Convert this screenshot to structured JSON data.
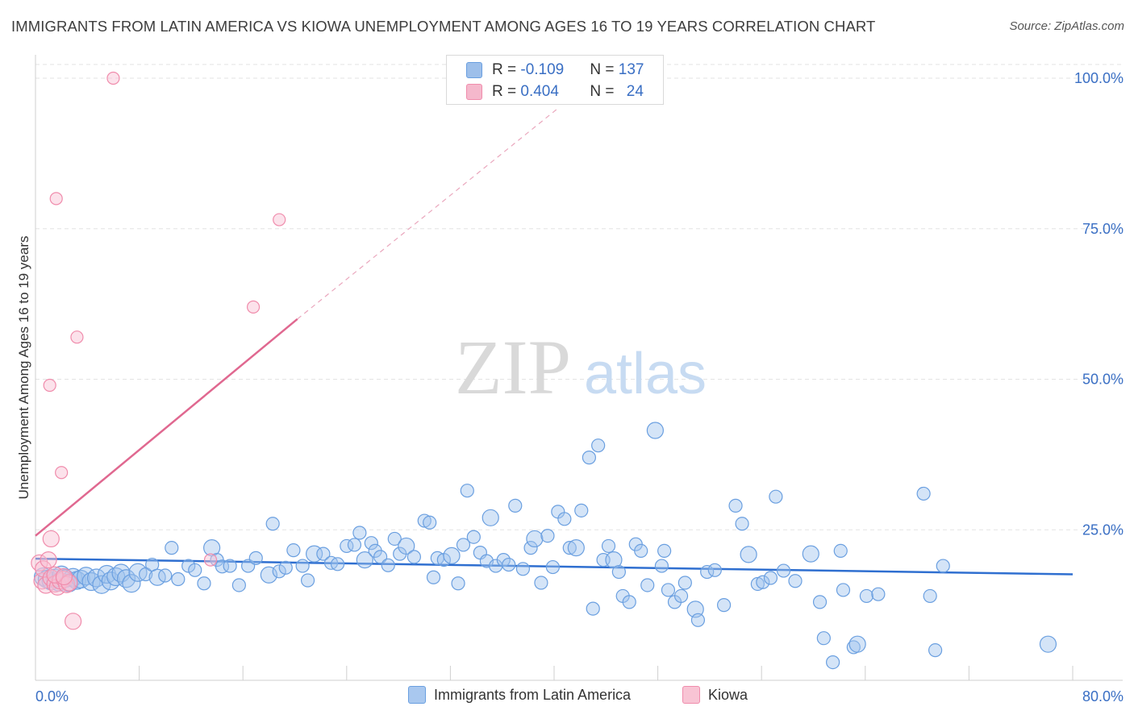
{
  "header": {
    "title": "IMMIGRANTS FROM LATIN AMERICA VS KIOWA UNEMPLOYMENT AMONG AGES 16 TO 19 YEARS CORRELATION CHART",
    "source": "Source: ZipAtlas.com"
  },
  "watermark": {
    "zip": "ZIP",
    "atlas": "atlas"
  },
  "stats": {
    "rows": [
      {
        "r_label": "R = ",
        "r_value": "-0.109",
        "n_label": "N = ",
        "n_value": "137",
        "color": "#9dbfea"
      },
      {
        "r_label": "R = ",
        "r_value": "0.404",
        "n_label": "N = ",
        "n_value": "24",
        "color": "#f5b8cc"
      }
    ]
  },
  "legend": {
    "items": [
      {
        "label": "Immigrants from Latin America",
        "color": "#a9c8ef"
      },
      {
        "label": "Kiowa",
        "color": "#f8c4d4"
      }
    ]
  },
  "chart_data": {
    "type": "scatter",
    "title": "IMMIGRANTS FROM LATIN AMERICA VS KIOWA UNEMPLOYMENT AMONG AGES 16 TO 19 YEARS CORRELATION CHART",
    "ylabel": "Unemployment Among Ages 16 to 19 years",
    "xlim": [
      0,
      80
    ],
    "ylim": [
      0,
      100
    ],
    "x_tick_labels": [
      "0.0%",
      "80.0%"
    ],
    "y_tick_labels": [
      "25.0%",
      "50.0%",
      "75.0%",
      "100.0%"
    ],
    "y_ticks": [
      25,
      50,
      75,
      100
    ],
    "grid": true,
    "series": [
      {
        "name": "Immigrants from Latin America",
        "color": "#6a9fe0",
        "trendline": {
          "x": [
            0,
            80
          ],
          "y": [
            20.2,
            17.6
          ],
          "color": "#2f6fd0"
        },
        "points": [
          [
            0.6,
            17.2
          ],
          [
            0.9,
            16.8
          ],
          [
            1.2,
            16.5
          ],
          [
            1.5,
            17.0
          ],
          [
            1.8,
            16.3
          ],
          [
            2.0,
            17.5
          ],
          [
            2.3,
            16.9
          ],
          [
            2.6,
            16.2
          ],
          [
            2.9,
            17.1
          ],
          [
            3.2,
            16.6
          ],
          [
            3.5,
            16.8
          ],
          [
            3.9,
            17.3
          ],
          [
            4.3,
            16.4
          ],
          [
            4.7,
            17.0
          ],
          [
            5.1,
            15.9
          ],
          [
            5.5,
            17.6
          ],
          [
            5.8,
            16.5
          ],
          [
            6.2,
            17.2
          ],
          [
            6.6,
            17.8
          ],
          [
            7.0,
            16.9
          ],
          [
            7.4,
            16.1
          ],
          [
            7.9,
            17.9
          ],
          [
            8.5,
            17.6
          ],
          [
            9.0,
            19.2
          ],
          [
            9.4,
            17.1
          ],
          [
            10.0,
            17.4
          ],
          [
            10.5,
            22.0
          ],
          [
            11.0,
            16.8
          ],
          [
            11.8,
            19.0
          ],
          [
            12.3,
            18.3
          ],
          [
            13.0,
            16.1
          ],
          [
            13.6,
            22.0
          ],
          [
            14.0,
            20.0
          ],
          [
            14.4,
            18.9
          ],
          [
            15.0,
            19.0
          ],
          [
            15.7,
            15.8
          ],
          [
            16.4,
            19.0
          ],
          [
            17.0,
            20.3
          ],
          [
            18.0,
            17.5
          ],
          [
            18.3,
            26.0
          ],
          [
            18.8,
            18.1
          ],
          [
            19.3,
            18.7
          ],
          [
            19.9,
            21.6
          ],
          [
            20.6,
            19.0
          ],
          [
            21.0,
            16.6
          ],
          [
            21.5,
            21.0
          ],
          [
            22.2,
            21.0
          ],
          [
            22.8,
            19.5
          ],
          [
            23.3,
            19.3
          ],
          [
            24.0,
            22.3
          ],
          [
            24.6,
            22.5
          ],
          [
            25.0,
            24.5
          ],
          [
            25.4,
            20.0
          ],
          [
            25.9,
            22.8
          ],
          [
            26.2,
            21.5
          ],
          [
            26.6,
            20.5
          ],
          [
            27.2,
            19.1
          ],
          [
            27.7,
            23.5
          ],
          [
            28.1,
            21.0
          ],
          [
            28.6,
            22.3
          ],
          [
            29.2,
            20.5
          ],
          [
            30.0,
            26.5
          ],
          [
            30.4,
            26.2
          ],
          [
            30.7,
            17.1
          ],
          [
            31.0,
            20.3
          ],
          [
            31.5,
            20.0
          ],
          [
            32.1,
            20.7
          ],
          [
            32.6,
            16.1
          ],
          [
            33.0,
            22.5
          ],
          [
            33.3,
            31.5
          ],
          [
            33.8,
            23.8
          ],
          [
            34.3,
            21.2
          ],
          [
            34.8,
            19.8
          ],
          [
            35.1,
            27.0
          ],
          [
            35.5,
            19.0
          ],
          [
            36.1,
            20.0
          ],
          [
            36.5,
            19.2
          ],
          [
            37.0,
            29.0
          ],
          [
            37.6,
            18.5
          ],
          [
            38.2,
            22.0
          ],
          [
            38.5,
            23.5
          ],
          [
            39.0,
            16.2
          ],
          [
            39.5,
            24.0
          ],
          [
            39.9,
            18.8
          ],
          [
            40.3,
            28.0
          ],
          [
            40.8,
            26.8
          ],
          [
            41.2,
            22.0
          ],
          [
            41.7,
            22.0
          ],
          [
            42.1,
            28.2
          ],
          [
            42.7,
            37.0
          ],
          [
            43.0,
            11.9
          ],
          [
            43.4,
            39.0
          ],
          [
            43.8,
            20.0
          ],
          [
            44.2,
            22.3
          ],
          [
            44.6,
            20.0
          ],
          [
            45.0,
            18.0
          ],
          [
            45.3,
            14.0
          ],
          [
            45.8,
            13.0
          ],
          [
            46.3,
            22.6
          ],
          [
            46.7,
            21.5
          ],
          [
            47.2,
            15.8
          ],
          [
            47.8,
            41.5
          ],
          [
            48.3,
            19.0
          ],
          [
            48.5,
            21.5
          ],
          [
            48.8,
            15.0
          ],
          [
            49.3,
            13.0
          ],
          [
            49.8,
            14.0
          ],
          [
            50.1,
            16.2
          ],
          [
            50.9,
            11.8
          ],
          [
            51.1,
            10.0
          ],
          [
            51.8,
            18.0
          ],
          [
            52.4,
            18.3
          ],
          [
            53.1,
            12.5
          ],
          [
            54.0,
            29.0
          ],
          [
            54.5,
            26.0
          ],
          [
            55.0,
            20.9
          ],
          [
            55.7,
            16.0
          ],
          [
            56.1,
            16.3
          ],
          [
            56.7,
            17.0
          ],
          [
            57.1,
            30.5
          ],
          [
            57.7,
            18.2
          ],
          [
            58.6,
            16.5
          ],
          [
            59.8,
            21.0
          ],
          [
            60.5,
            13.0
          ],
          [
            60.8,
            7.0
          ],
          [
            61.5,
            3.0
          ],
          [
            62.1,
            21.5
          ],
          [
            62.3,
            15.0
          ],
          [
            63.1,
            5.5
          ],
          [
            63.4,
            6.0
          ],
          [
            64.1,
            14.0
          ],
          [
            65.0,
            14.3
          ],
          [
            68.5,
            31.0
          ],
          [
            69.0,
            14.0
          ],
          [
            69.4,
            5.0
          ],
          [
            70.0,
            19.0
          ],
          [
            78.1,
            6.0
          ]
        ]
      },
      {
        "name": "Kiowa",
        "color": "#f08cac",
        "trendline": {
          "x": [
            0,
            20.2
          ],
          "y": [
            24.0,
            60.0
          ],
          "dashed_extension_to": [
            40.3,
            95.0
          ],
          "color": "#e06890"
        },
        "points": [
          [
            0.3,
            19.5
          ],
          [
            0.5,
            16.5
          ],
          [
            0.6,
            18.5
          ],
          [
            0.8,
            15.8
          ],
          [
            1.0,
            20.0
          ],
          [
            1.2,
            17.0
          ],
          [
            1.5,
            16.0
          ],
          [
            1.7,
            15.5
          ],
          [
            1.9,
            16.5
          ],
          [
            2.2,
            16.8
          ],
          [
            2.4,
            15.9
          ],
          [
            2.6,
            16.2
          ],
          [
            2.9,
            9.8
          ],
          [
            1.1,
            49.0
          ],
          [
            1.6,
            80.0
          ],
          [
            2.0,
            34.5
          ],
          [
            3.2,
            57.0
          ],
          [
            1.2,
            23.5
          ],
          [
            6.0,
            100.0
          ],
          [
            13.5,
            20.0
          ],
          [
            16.8,
            62.0
          ],
          [
            18.8,
            76.5
          ],
          [
            1.5,
            17.5
          ],
          [
            2.2,
            17.2
          ]
        ]
      }
    ]
  }
}
